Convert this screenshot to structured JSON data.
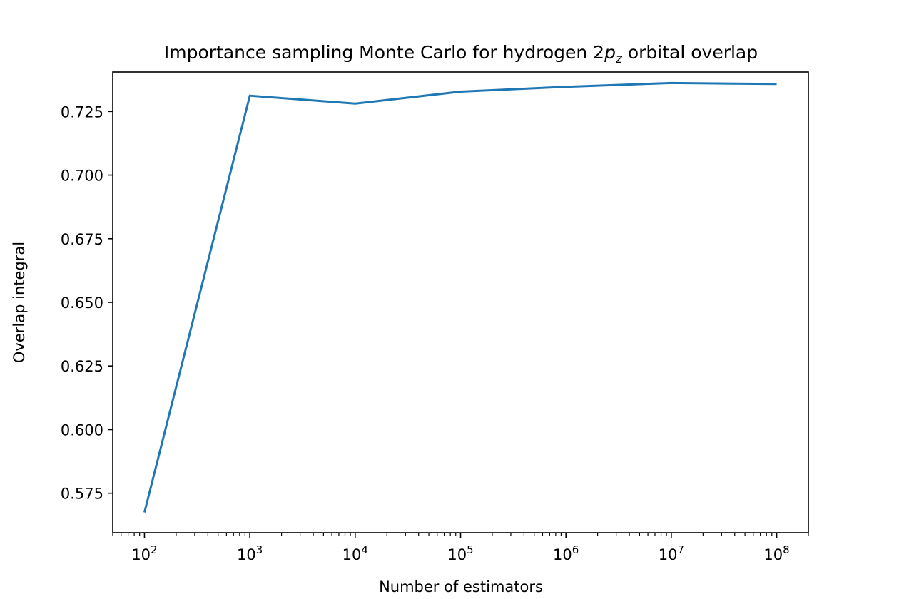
{
  "chart_data": {
    "type": "line",
    "title": {
      "prefix": "Importance sampling Monte Carlo for hydrogen 2",
      "math_main": "p",
      "math_sub": "z",
      "suffix": " orbital overlap"
    },
    "xlabel": "Number of estimators",
    "ylabel": "Overlap integral",
    "x_scale": "log",
    "xlim": [
      50,
      200000000
    ],
    "ylim": [
      0.5595,
      0.7405
    ],
    "x_ticks": [
      {
        "value": 100,
        "base": "10",
        "exp": "2"
      },
      {
        "value": 1000,
        "base": "10",
        "exp": "3"
      },
      {
        "value": 10000,
        "base": "10",
        "exp": "4"
      },
      {
        "value": 100000,
        "base": "10",
        "exp": "5"
      },
      {
        "value": 1000000,
        "base": "10",
        "exp": "6"
      },
      {
        "value": 10000000,
        "base": "10",
        "exp": "7"
      },
      {
        "value": 100000000,
        "base": "10",
        "exp": "8"
      }
    ],
    "y_ticks": [
      {
        "value": 0.575,
        "label": "0.575"
      },
      {
        "value": 0.6,
        "label": "0.600"
      },
      {
        "value": 0.625,
        "label": "0.625"
      },
      {
        "value": 0.65,
        "label": "0.650"
      },
      {
        "value": 0.675,
        "label": "0.675"
      },
      {
        "value": 0.7,
        "label": "0.700"
      },
      {
        "value": 0.725,
        "label": "0.725"
      }
    ],
    "grid": false,
    "series": [
      {
        "color": "#1f77b4",
        "x": [
          100,
          1000,
          10000,
          100000,
          1000000,
          10000000,
          100000000
        ],
        "y": [
          0.5675,
          0.7312,
          0.7281,
          0.7328,
          0.7347,
          0.7362,
          0.7358
        ]
      }
    ]
  }
}
